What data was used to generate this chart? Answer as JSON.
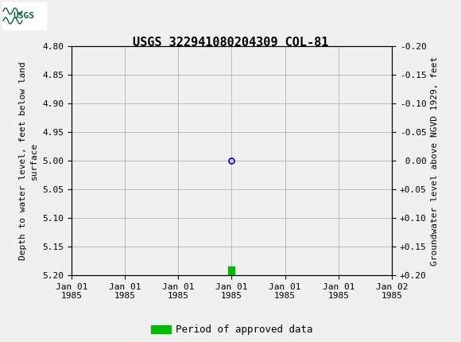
{
  "title": "USGS 322941080204309 COL-81",
  "ylabel_left": "Depth to water level, feet below land\nsurface",
  "ylabel_right": "Groundwater level above NGVD 1929, feet",
  "ylim_left": [
    5.2,
    4.8
  ],
  "ylim_right": [
    0.2,
    -0.2
  ],
  "yticks_left": [
    4.8,
    4.85,
    4.9,
    4.95,
    5.0,
    5.05,
    5.1,
    5.15,
    5.2
  ],
  "yticks_right": [
    0.2,
    0.15,
    0.1,
    0.05,
    0.0,
    -0.05,
    -0.1,
    -0.15,
    -0.2
  ],
  "xtick_labels": [
    "Jan 01\n1985",
    "Jan 01\n1985",
    "Jan 01\n1985",
    "Jan 01\n1985",
    "Jan 01\n1985",
    "Jan 01\n1985",
    "Jan 02\n1985"
  ],
  "point_x": 3,
  "point_y": 5.0,
  "point_color": "#0000cc",
  "marker_style": "o",
  "marker_size": 5,
  "bar_x": 3,
  "bar_y": 5.185,
  "bar_color": "#00bb00",
  "bar_width": 0.12,
  "bar_height": 0.018,
  "grid_color": "#bbbbbb",
  "background_color": "#f0f0f0",
  "header_bg": "#006633",
  "legend_label": "Period of approved data",
  "legend_color": "#00bb00",
  "title_fontsize": 11,
  "axis_fontsize": 8,
  "tick_fontsize": 8,
  "xlim": [
    0,
    6
  ],
  "xtick_positions": [
    0,
    1,
    2,
    3,
    4,
    5,
    6
  ]
}
